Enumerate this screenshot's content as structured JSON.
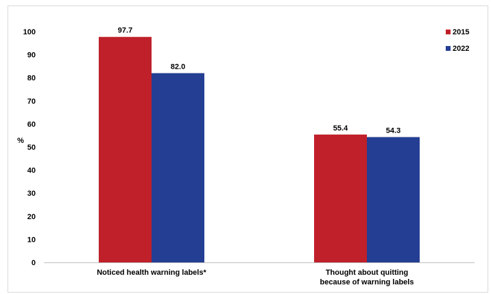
{
  "chart_data": {
    "type": "bar",
    "title": "",
    "xlabel": "",
    "ylabel": "%",
    "ylim": [
      0,
      100
    ],
    "y_ticks": [
      0,
      10,
      20,
      30,
      40,
      50,
      60,
      70,
      80,
      90,
      100
    ],
    "grid": false,
    "legend_position": "top-right",
    "categories": [
      [
        "Noticed health warning labels*"
      ],
      [
        "Thought about quitting",
        "because of warning labels"
      ]
    ],
    "series": [
      {
        "name": "2015",
        "color": "#c0202a",
        "values": [
          97.7,
          55.4
        ],
        "labels": [
          "97.7",
          "55.4"
        ]
      },
      {
        "name": "2022",
        "color": "#243e93",
        "values": [
          82.0,
          54.3
        ],
        "labels": [
          "82.0",
          "54.3"
        ]
      }
    ]
  }
}
